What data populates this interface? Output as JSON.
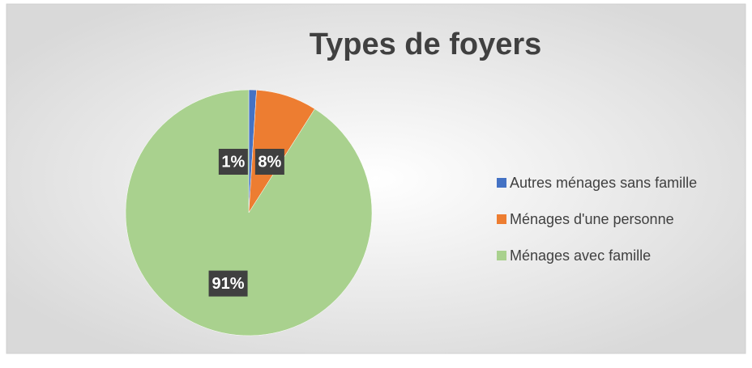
{
  "chart_data": {
    "type": "pie",
    "title": "Types de foyers",
    "categories": [
      "Autres ménages sans famille",
      "Ménages d'une personne",
      "Ménages avec famille"
    ],
    "values": [
      1,
      8,
      91
    ],
    "value_labels": [
      "1%",
      "8%",
      "91%"
    ],
    "colors": [
      "#4472c4",
      "#ed7d31",
      "#a9d18e"
    ],
    "legend": "right"
  }
}
